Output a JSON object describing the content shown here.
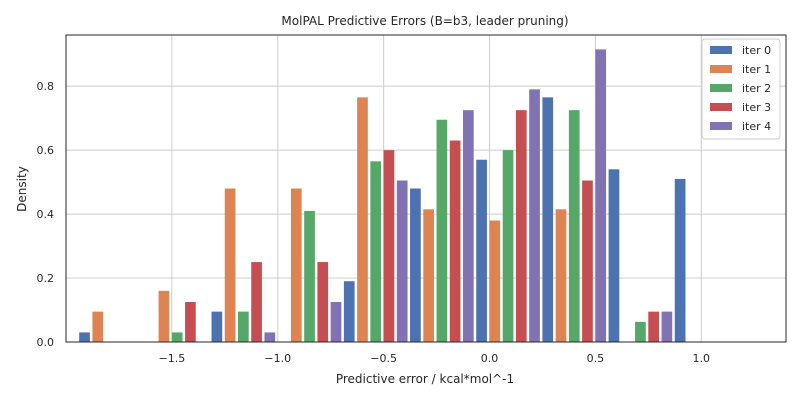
{
  "chart_data": {
    "type": "bar",
    "title": "MolPAL Predictive Errors (B=b3, leader pruning)",
    "xlabel": "Predictive error / kcal*mol^-1",
    "ylabel": "Density",
    "xlim": [
      -2.0,
      1.4
    ],
    "ylim": [
      0.0,
      0.96
    ],
    "xticks": [
      -1.5,
      -1.0,
      -0.5,
      0.0,
      0.5,
      1.0
    ],
    "xtick_labels": [
      "−1.5",
      "−1.0",
      "−0.5",
      "0.0",
      "0.5",
      "1.0"
    ],
    "yticks": [
      0.0,
      0.2,
      0.4,
      0.6,
      0.8
    ],
    "ytick_labels": [
      "0.0",
      "0.2",
      "0.4",
      "0.6",
      "0.8"
    ],
    "grid": true,
    "legend_position": "top-right",
    "bin_width": 0.3125,
    "bin_centers": [
      -1.7875,
      -1.475,
      -1.1625,
      -0.85,
      -0.5375,
      -0.225,
      0.0875,
      0.4,
      0.7125,
      1.025
    ],
    "series": [
      {
        "name": "iter 0",
        "color": "#4c72b0",
        "values": [
          0.03,
          0.0,
          0.095,
          0.0,
          0.19,
          0.48,
          0.57,
          0.765,
          0.54,
          0.51
        ]
      },
      {
        "name": "iter 1",
        "color": "#dd8452",
        "values": [
          0.095,
          0.16,
          0.48,
          0.48,
          0.765,
          0.415,
          0.38,
          0.415,
          0.0,
          0.0
        ]
      },
      {
        "name": "iter 2",
        "color": "#55a868",
        "values": [
          0.0,
          0.03,
          0.095,
          0.41,
          0.565,
          0.695,
          0.6,
          0.725,
          0.063,
          0.0
        ]
      },
      {
        "name": "iter 3",
        "color": "#c44e52",
        "values": [
          0.0,
          0.125,
          0.25,
          0.25,
          0.6,
          0.63,
          0.725,
          0.505,
          0.095,
          0.0
        ]
      },
      {
        "name": "iter 4",
        "color": "#8172b3",
        "values": [
          0.0,
          0.0,
          0.03,
          0.125,
          0.505,
          0.725,
          0.79,
          0.915,
          0.095,
          0.0
        ]
      }
    ]
  }
}
